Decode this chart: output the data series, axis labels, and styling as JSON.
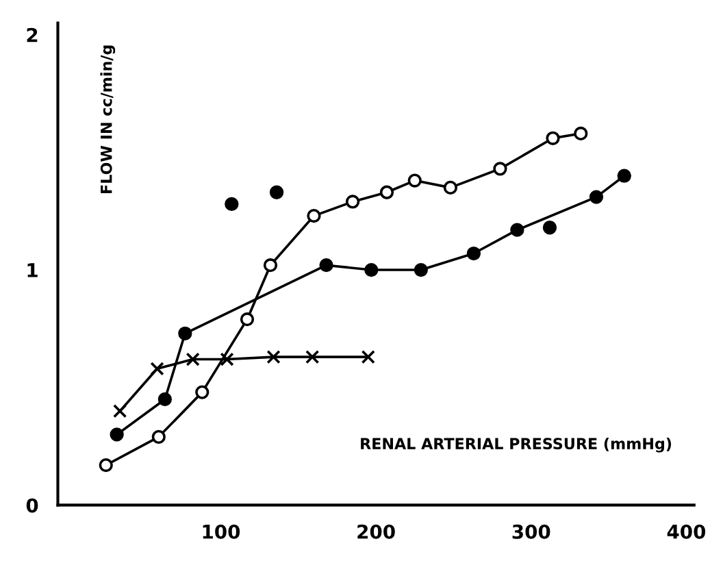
{
  "chart_data": {
    "type": "line",
    "xlabel": "RENAL ARTERIAL PRESSURE (mmHg)",
    "ylabel": "FLOW IN cc/min/g",
    "xlim": [
      -5,
      405
    ],
    "ylim": [
      0,
      2.05
    ],
    "xticks": [
      100,
      200,
      300,
      400
    ],
    "yticks": [
      0,
      1,
      2
    ],
    "grid": false,
    "legend": false,
    "line_style": "solid",
    "series": [
      {
        "marker": "circle_open",
        "color": "#000000",
        "x": [
          26,
          60,
          88,
          117,
          132,
          160,
          185,
          207,
          225,
          248,
          280,
          314,
          332
        ],
        "values": [
          0.17,
          0.29,
          0.48,
          0.79,
          1.02,
          1.23,
          1.29,
          1.33,
          1.38,
          1.35,
          1.43,
          1.56,
          1.58
        ]
      },
      {
        "marker": "circle",
        "color": "#000000",
        "x": [
          33,
          64,
          77,
          168,
          197,
          229,
          263,
          291,
          342,
          360
        ],
        "values": [
          0.3,
          0.45,
          0.73,
          1.02,
          1.0,
          1.0,
          1.07,
          1.17,
          1.31,
          1.4
        ]
      },
      {
        "marker": "cross",
        "color": "#000000",
        "x": [
          35,
          59,
          82,
          104,
          134,
          159,
          195
        ],
        "values": [
          0.4,
          0.58,
          0.62,
          0.62,
          0.63,
          0.63,
          0.63
        ]
      },
      {
        "type": "scatter",
        "marker": "circle",
        "color": "#000000",
        "x": [
          107,
          136,
          312
        ],
        "values": [
          1.28,
          1.33,
          1.18
        ]
      }
    ]
  }
}
